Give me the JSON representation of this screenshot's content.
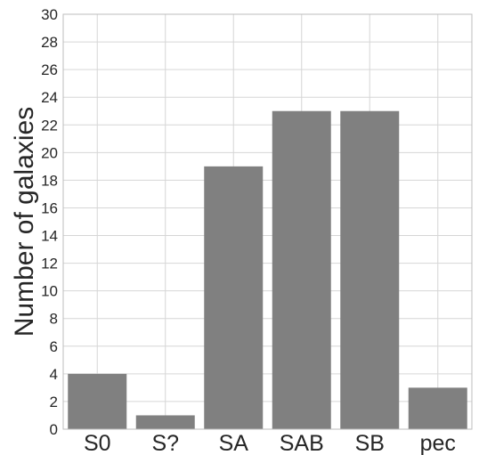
{
  "chart_data": {
    "type": "bar",
    "title": "",
    "xlabel": "",
    "ylabel": "Number of galaxies",
    "categories": [
      "S0",
      "S?",
      "SA",
      "SAB",
      "SB",
      "pec"
    ],
    "values": [
      4,
      1,
      19,
      23,
      23,
      3
    ],
    "ylim": [
      0,
      30
    ],
    "yticks": [
      "0",
      "2",
      "4",
      "6",
      "8",
      "10",
      "12",
      "14",
      "16",
      "18",
      "20",
      "22",
      "24",
      "26",
      "28",
      "30"
    ],
    "grid": true,
    "legend": "none",
    "bar_color": "#808080"
  }
}
